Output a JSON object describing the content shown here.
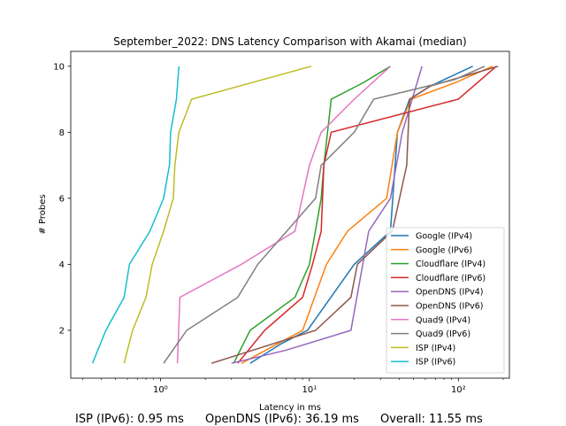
{
  "chart_data": {
    "type": "line",
    "title": "September_2022: DNS Latency Comparison with Akamai (median)",
    "xlabel": "Latency in ms",
    "ylabel": "# Probes",
    "xscale": "log",
    "xlim": [
      0.25,
      220
    ],
    "ylim": [
      0.55,
      10.45
    ],
    "x_ticks": [
      1,
      10,
      100
    ],
    "x_tick_labels": [
      "10⁰",
      "10¹",
      "10²"
    ],
    "y_ticks": [
      2,
      4,
      6,
      8,
      10
    ],
    "grid": false,
    "legend_position": "lower-right",
    "series": [
      {
        "name": "Google (IPv4)",
        "color": "#1f77b4",
        "points": [
          [
            4.0,
            1
          ],
          [
            6.5,
            1.6
          ],
          [
            9.7,
            2
          ],
          [
            20,
            4
          ],
          [
            35,
            5
          ],
          [
            39,
            8
          ],
          [
            47,
            9
          ],
          [
            65,
            9.4
          ],
          [
            125,
            10
          ]
        ]
      },
      {
        "name": "Google (IPv6)",
        "color": "#ff7f0e",
        "points": [
          [
            3.5,
            1
          ],
          [
            9,
            2
          ],
          [
            13,
            4
          ],
          [
            18,
            5
          ],
          [
            33,
            6
          ],
          [
            39,
            8
          ],
          [
            48,
            9
          ],
          [
            95,
            9.5
          ],
          [
            170,
            10
          ]
        ]
      },
      {
        "name": "Cloudflare (IPv4)",
        "color": "#2ca02c",
        "points": [
          [
            3.1,
            1
          ],
          [
            4,
            2
          ],
          [
            8,
            3
          ],
          [
            10,
            4
          ],
          [
            12,
            6
          ],
          [
            12.5,
            7
          ],
          [
            14,
            9
          ],
          [
            23,
            9.5
          ],
          [
            35,
            10
          ]
        ]
      },
      {
        "name": "Cloudflare (IPv6)",
        "color": "#d62728",
        "points": [
          [
            3.3,
            1
          ],
          [
            5,
            2
          ],
          [
            9,
            3
          ],
          [
            10.5,
            4
          ],
          [
            12,
            5
          ],
          [
            12.5,
            7
          ],
          [
            14,
            8
          ],
          [
            100,
            9
          ],
          [
            180,
            10
          ]
        ]
      },
      {
        "name": "OpenDNS (IPv4)",
        "color": "#9467bd",
        "points": [
          [
            3,
            1
          ],
          [
            7,
            1.4
          ],
          [
            19,
            2
          ],
          [
            25,
            5
          ],
          [
            35,
            6
          ],
          [
            42,
            8
          ],
          [
            57,
            10
          ]
        ]
      },
      {
        "name": "OpenDNS (IPv6)",
        "color": "#8c564b",
        "points": [
          [
            2.2,
            1
          ],
          [
            11,
            2
          ],
          [
            19,
            3
          ],
          [
            21,
            4
          ],
          [
            36,
            5
          ],
          [
            45,
            7
          ],
          [
            47,
            9
          ],
          [
            65,
            9.4
          ],
          [
            185,
            10
          ]
        ]
      },
      {
        "name": "Quad9 (IPv4)",
        "color": "#e377c2",
        "points": [
          [
            1.3,
            1
          ],
          [
            1.35,
            3
          ],
          [
            3.5,
            4
          ],
          [
            8,
            5
          ],
          [
            10,
            7
          ],
          [
            12,
            8
          ],
          [
            20,
            9
          ],
          [
            35,
            10
          ]
        ]
      },
      {
        "name": "Quad9 (IPv6)",
        "color": "#7f7f7f",
        "points": [
          [
            1.05,
            1
          ],
          [
            1.5,
            2
          ],
          [
            3.3,
            3
          ],
          [
            4.5,
            4
          ],
          [
            11,
            6
          ],
          [
            12,
            7
          ],
          [
            20,
            8
          ],
          [
            27,
            9
          ],
          [
            95,
            9.6
          ],
          [
            150,
            10
          ]
        ]
      },
      {
        "name": "ISP (IPv4)",
        "color": "#bcbd22",
        "points": [
          [
            0.57,
            1
          ],
          [
            0.65,
            2
          ],
          [
            0.8,
            3
          ],
          [
            0.88,
            4
          ],
          [
            1.05,
            5
          ],
          [
            1.22,
            6
          ],
          [
            1.25,
            7
          ],
          [
            1.33,
            8
          ],
          [
            1.62,
            9
          ],
          [
            10.3,
            10
          ]
        ]
      },
      {
        "name": "ISP (IPv6)",
        "color": "#17becf",
        "points": [
          [
            0.35,
            1
          ],
          [
            0.43,
            2
          ],
          [
            0.57,
            3
          ],
          [
            0.62,
            4
          ],
          [
            0.85,
            5
          ],
          [
            1.05,
            6
          ],
          [
            1.15,
            7
          ],
          [
            1.17,
            8
          ],
          [
            1.28,
            9
          ],
          [
            1.33,
            10
          ]
        ]
      }
    ]
  },
  "footer": {
    "isp": "ISP (IPv6): 0.95 ms",
    "opendns": "OpenDNS (IPv6): 36.19 ms",
    "overall": "Overall: 11.55 ms"
  }
}
